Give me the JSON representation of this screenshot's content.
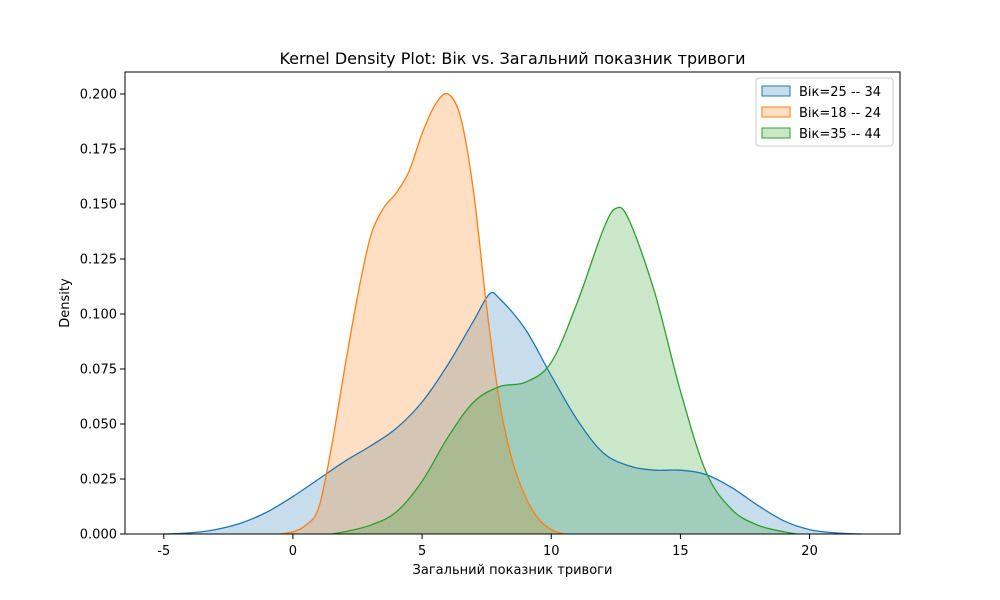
{
  "chart_data": {
    "type": "area",
    "title": "Kernel Density Plot: Вік vs. Загальний показник тривоги",
    "xlabel": "Загальний показник тривоги",
    "ylabel": "Density",
    "xlim": [
      -6.5,
      23.5
    ],
    "ylim": [
      0,
      0.21
    ],
    "xticks": [
      -5,
      0,
      5,
      10,
      15,
      20
    ],
    "yticks": [
      0.0,
      0.025,
      0.05,
      0.075,
      0.1,
      0.125,
      0.15,
      0.175,
      0.2
    ],
    "ytick_labels": [
      "0.000",
      "0.025",
      "0.050",
      "0.075",
      "0.100",
      "0.125",
      "0.150",
      "0.175",
      "0.200"
    ],
    "legend_position": "top-right",
    "grid": false,
    "series": [
      {
        "name": "Вік=25 -- 34",
        "color": "#1f77b4",
        "x": [
          -5,
          -4,
          -3,
          -2,
          -1,
          0,
          1,
          2,
          3,
          4,
          5,
          6,
          7,
          7.6,
          8,
          9,
          10,
          11,
          12,
          13,
          14,
          15,
          16,
          17,
          18,
          19,
          20,
          21,
          22
        ],
        "y": [
          0.0,
          0.0005,
          0.002,
          0.005,
          0.01,
          0.017,
          0.025,
          0.033,
          0.04,
          0.048,
          0.06,
          0.077,
          0.097,
          0.109,
          0.107,
          0.093,
          0.072,
          0.052,
          0.037,
          0.031,
          0.029,
          0.029,
          0.027,
          0.021,
          0.013,
          0.006,
          0.002,
          0.0005,
          0.0
        ]
      },
      {
        "name": "Вік=18 -- 24",
        "color": "#ff7f0e",
        "x": [
          -0.5,
          0,
          0.5,
          1,
          1.5,
          2,
          2.5,
          3,
          3.5,
          4,
          4.5,
          5,
          5.5,
          6,
          6.5,
          7,
          7.5,
          8,
          8.5,
          9,
          9.5,
          10,
          10.5
        ],
        "y": [
          0.0,
          0.001,
          0.004,
          0.012,
          0.04,
          0.075,
          0.108,
          0.135,
          0.148,
          0.155,
          0.165,
          0.182,
          0.195,
          0.2,
          0.189,
          0.155,
          0.103,
          0.06,
          0.033,
          0.017,
          0.007,
          0.002,
          0.0
        ]
      },
      {
        "name": "Вік=35 -- 44",
        "color": "#2ca02c",
        "x": [
          1.5,
          2,
          3,
          4,
          5,
          6,
          7,
          8,
          9,
          10,
          11,
          12,
          12.5,
          13,
          14,
          15,
          16,
          17,
          18,
          19,
          19.5
        ],
        "y": [
          0.0,
          0.001,
          0.004,
          0.01,
          0.024,
          0.044,
          0.06,
          0.067,
          0.069,
          0.078,
          0.105,
          0.138,
          0.148,
          0.143,
          0.11,
          0.065,
          0.028,
          0.011,
          0.004,
          0.001,
          0.0
        ]
      }
    ]
  }
}
